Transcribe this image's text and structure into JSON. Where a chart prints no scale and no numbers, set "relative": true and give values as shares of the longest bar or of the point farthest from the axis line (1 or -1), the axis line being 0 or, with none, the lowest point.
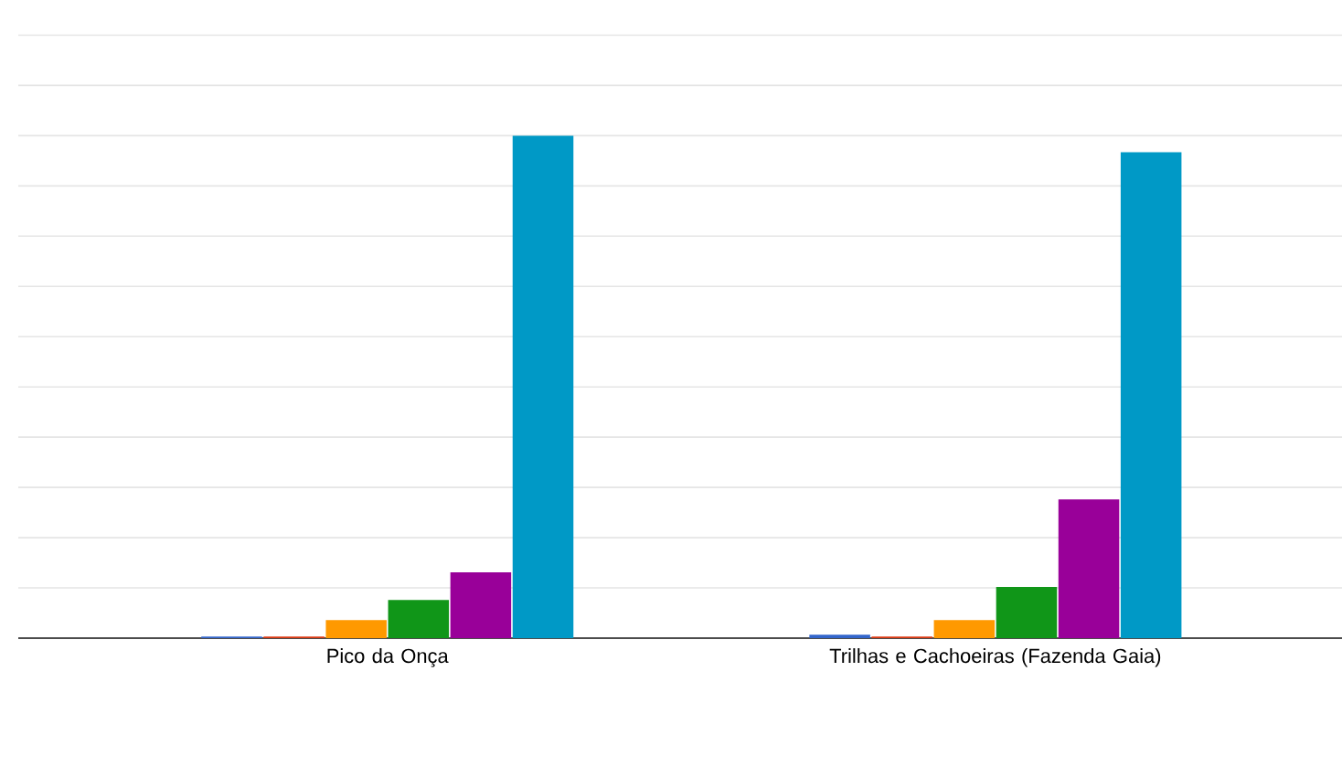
{
  "chart_data": {
    "type": "bar",
    "relative": true,
    "grid": "y",
    "legend": false,
    "categories": [
      "Pico da Onça",
      "Trilhas e Cachoeiras (Fazenda Gaia)"
    ],
    "series": [
      {
        "color": "#3366cc",
        "values": [
          0.003,
          0.007
        ]
      },
      {
        "color": "#dc3912",
        "values": [
          0.003,
          0.003
        ]
      },
      {
        "color": "#ff9900",
        "values": [
          0.036,
          0.036
        ]
      },
      {
        "color": "#109618",
        "values": [
          0.076,
          0.102
        ]
      },
      {
        "color": "#990099",
        "values": [
          0.131,
          0.276
        ]
      },
      {
        "color": "#0099c6",
        "values": [
          1,
          0.967
        ]
      }
    ]
  }
}
